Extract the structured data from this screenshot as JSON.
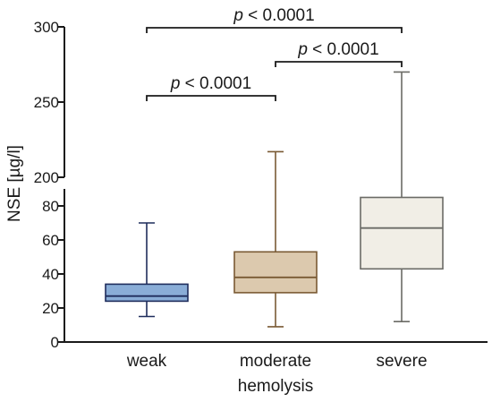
{
  "chart_data": {
    "type": "box",
    "xlabel": "hemolysis",
    "ylabel": "NSE [µg/l]",
    "y_axis_break": {
      "lower_range": [
        0,
        90
      ],
      "upper_range": [
        200,
        300
      ]
    },
    "lower_ticks": [
      "0",
      "20",
      "40",
      "60",
      "80"
    ],
    "upper_ticks": [
      "200",
      "250",
      "300"
    ],
    "categories": [
      "weak",
      "moderate",
      "severe"
    ],
    "boxes": [
      {
        "name": "weak",
        "min": 15,
        "q1": 24,
        "median": 27,
        "q3": 34,
        "max": 70,
        "fill": "#8aadd7",
        "stroke": "#1f2d5c"
      },
      {
        "name": "moderate",
        "min": 9,
        "q1": 29,
        "median": 38,
        "q3": 53,
        "max": 217,
        "fill": "#dcc9ae",
        "stroke": "#7a5a34"
      },
      {
        "name": "severe",
        "min": 12,
        "q1": 43,
        "median": 67,
        "q3": 85,
        "max": 270,
        "fill": "#f1eee6",
        "stroke": "#6b6b66"
      }
    ],
    "comparisons": [
      {
        "from": "weak",
        "to": "severe",
        "p_symbol": "p",
        "p_value": " < 0.0001"
      },
      {
        "from": "moderate",
        "to": "severe",
        "p_symbol": "p",
        "p_value": " < 0.0001"
      },
      {
        "from": "weak",
        "to": "moderate",
        "p_symbol": "p",
        "p_value": " < 0.0001"
      }
    ]
  }
}
